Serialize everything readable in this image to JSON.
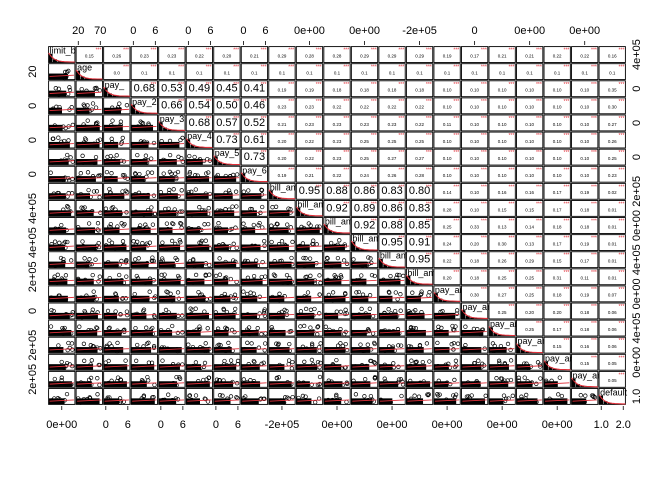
{
  "chart_data": {
    "type": "scatter-matrix",
    "title": "",
    "variables": [
      "limit_bal",
      "age",
      "pay_0",
      "pay_2",
      "pay_3",
      "pay_4",
      "pay_5",
      "pay_6",
      "bill_amt1",
      "bill_amt2",
      "bill_amt3",
      "bill_amt4",
      "bill_amt5",
      "bill_amt6",
      "pay_amt1",
      "pay_amt2",
      "pay_amt3",
      "pay_amt4",
      "pay_amt5",
      "pay_amt6",
      "default"
    ],
    "diagonal_labels": [
      "limit_ba",
      "age",
      "pay_",
      "pay_2",
      "pay_3",
      "pay_4",
      "pay_5",
      "pay_6",
      "bill_am",
      "bill_am",
      "bill_am",
      "bill_am",
      "bill_am",
      "bill_am",
      "pay_am",
      "pay_am",
      "pay_am",
      "pay_am",
      "pay_am",
      "pay_am",
      "default"
    ],
    "top_ticks": [
      {
        "col": 1,
        "labels": [
          "20",
          "70"
        ]
      },
      {
        "col": 3,
        "labels": [
          "0",
          "6"
        ]
      },
      {
        "col": 5,
        "labels": [
          "0",
          "6"
        ]
      },
      {
        "col": 7,
        "labels": [
          "0",
          "6"
        ]
      },
      {
        "col": 9,
        "labels": [
          "0e+00"
        ]
      },
      {
        "col": 11,
        "labels": [
          "0e+00"
        ]
      },
      {
        "col": 13,
        "labels": [
          "-2e+05"
        ]
      },
      {
        "col": 15,
        "labels": [
          "0"
        ]
      },
      {
        "col": 17,
        "labels": [
          "0e+00"
        ]
      },
      {
        "col": 19,
        "labels": [
          "0e+00"
        ]
      }
    ],
    "bottom_ticks": [
      {
        "col": 0,
        "labels": [
          "0e+00"
        ]
      },
      {
        "col": 2,
        "labels": [
          "0",
          "6"
        ]
      },
      {
        "col": 4,
        "labels": [
          "0",
          "6"
        ]
      },
      {
        "col": 6,
        "labels": [
          "0",
          "6"
        ]
      },
      {
        "col": 8,
        "labels": [
          "-2e+05"
        ]
      },
      {
        "col": 10,
        "labels": [
          "0e+00"
        ]
      },
      {
        "col": 12,
        "labels": [
          "0e+00"
        ]
      },
      {
        "col": 14,
        "labels": [
          "0e+00"
        ]
      },
      {
        "col": 16,
        "labels": [
          "0e+00"
        ]
      },
      {
        "col": 18,
        "labels": [
          "0e+00"
        ]
      },
      {
        "col": 20,
        "labels": [
          "1.0",
          "2.0"
        ]
      }
    ],
    "left_ticks": [
      {
        "row": 1,
        "labels": [
          "20"
        ]
      },
      {
        "row": 3,
        "labels": [
          "0"
        ]
      },
      {
        "row": 5,
        "labels": [
          "0"
        ]
      },
      {
        "row": 7,
        "labels": [
          "0"
        ]
      },
      {
        "row": 9,
        "labels": [
          "4e+05"
        ]
      },
      {
        "row": 11,
        "labels": [
          "4e+05"
        ]
      },
      {
        "row": 13,
        "labels": [
          "2e+05"
        ]
      },
      {
        "row": 15,
        "labels": [
          "0"
        ]
      },
      {
        "row": 17,
        "labels": [
          "2e+05"
        ]
      },
      {
        "row": 19,
        "labels": [
          "2e+05"
        ]
      }
    ],
    "right_ticks": [
      {
        "row": 0,
        "labels": [
          "4e+05"
        ]
      },
      {
        "row": 2,
        "labels": [
          "0"
        ]
      },
      {
        "row": 4,
        "labels": [
          "0"
        ]
      },
      {
        "row": 6,
        "labels": [
          "0"
        ]
      },
      {
        "row": 8,
        "labels": [
          "2e+05"
        ]
      },
      {
        "row": 10,
        "labels": [
          "0e+00"
        ]
      },
      {
        "row": 12,
        "labels": [
          "4e+05"
        ]
      },
      {
        "row": 14,
        "labels": [
          "0e+00"
        ]
      },
      {
        "row": 16,
        "labels": [
          "4e+05"
        ]
      },
      {
        "row": 18,
        "labels": [
          "0e+00"
        ]
      },
      {
        "row": 20,
        "labels": [
          "1.0"
        ]
      }
    ],
    "correlations": [
      {
        "row": 0,
        "values": [
          "0.15",
          "0.26",
          "0.23",
          "0.23",
          "0.22",
          "0.20",
          "0.21",
          "0.29",
          "0.28",
          "0.28",
          "0.29",
          "0.29",
          "0.29",
          "0.19",
          "0.17",
          "0.21",
          "0.21",
          "0.22",
          "0.22",
          "0.16"
        ],
        "stars": "***"
      },
      {
        "row": 1,
        "values": [
          "0.0",
          "0.1",
          "0.1",
          "0.1",
          "0.1",
          "0.1",
          "0.1",
          "0.1",
          "0.1",
          "0.1",
          "0.1",
          "0.1",
          "0.1",
          "0.1",
          "0.1",
          "0.1",
          "0.1",
          "0.1",
          "0.1"
        ],
        "stars": "***"
      },
      {
        "row": 2,
        "values": [
          "0.68",
          "0.53",
          "0.49",
          "0.45",
          "0.41",
          "0.19",
          "0.19",
          "0.18",
          "0.18",
          "0.18",
          "0.18",
          "0.10",
          "0.10",
          "0.10",
          "0.10",
          "0.10",
          "0.10",
          "0.35"
        ],
        "stars": "***"
      },
      {
        "row": 3,
        "values": [
          "0.66",
          "0.54",
          "0.50",
          "0.46",
          "0.23",
          "0.23",
          "0.22",
          "0.22",
          "0.22",
          "0.22",
          "0.10",
          "0.10",
          "0.10",
          "0.10",
          "0.10",
          "0.10",
          "0.30"
        ],
        "stars": "***"
      },
      {
        "row": 4,
        "values": [
          "0.68",
          "0.57",
          "0.52",
          "0.21",
          "0.23",
          "0.23",
          "0.23",
          "0.23",
          "0.22",
          "0.11",
          "0.10",
          "0.10",
          "0.10",
          "0.10",
          "0.10",
          "0.27"
        ],
        "stars": "***"
      },
      {
        "row": 5,
        "values": [
          "0.73",
          "0.61",
          "0.20",
          "0.22",
          "0.23",
          "0.25",
          "0.25",
          "0.25",
          "0.10",
          "0.10",
          "0.10",
          "0.10",
          "0.10",
          "0.10",
          "0.26"
        ],
        "stars": "***"
      },
      {
        "row": 6,
        "values": [
          "0.73",
          "0.20",
          "0.22",
          "0.23",
          "0.25",
          "0.27",
          "0.27",
          "0.10",
          "0.10",
          "0.10",
          "0.10",
          "0.10",
          "0.10",
          "0.25"
        ],
        "stars": "***"
      },
      {
        "row": 7,
        "values": [
          "0.19",
          "0.21",
          "0.22",
          "0.24",
          "0.26",
          "0.28",
          "0.10",
          "0.10",
          "0.10",
          "0.10",
          "0.10",
          "0.10",
          "0.23"
        ],
        "stars": "***"
      },
      {
        "row": 8,
        "values": [
          "0.95",
          "0.88",
          "0.86",
          "0.83",
          "0.80",
          "0.14",
          "0.10",
          "0.16",
          "0.16",
          "0.17",
          "0.19",
          "0.02"
        ],
        "stars": "***"
      },
      {
        "row": 9,
        "values": [
          "0.92",
          "0.89",
          "0.86",
          "0.83",
          "0.28",
          "0.10",
          "0.15",
          "0.15",
          "0.17",
          "0.18",
          "0.01"
        ],
        "stars": "***"
      },
      {
        "row": 10,
        "values": [
          "0.92",
          "0.88",
          "0.85",
          "0.25",
          "0.33",
          "0.13",
          "0.14",
          "0.18",
          "0.18",
          "0.01"
        ],
        "stars": "***"
      },
      {
        "row": 11,
        "values": [
          "0.95",
          "0.91",
          "0.24",
          "0.20",
          "0.30",
          "0.13",
          "0.17",
          "0.19",
          "0.01"
        ],
        "stars": "***"
      },
      {
        "row": 12,
        "values": [
          "0.95",
          "0.22",
          "0.18",
          "0.26",
          "0.29",
          "0.15",
          "0.17",
          "0.01"
        ],
        "stars": "***"
      },
      {
        "row": 13,
        "values": [
          "0.20",
          "0.18",
          "0.25",
          "0.25",
          "0.31",
          "0.11",
          "0.01"
        ],
        "stars": "***"
      },
      {
        "row": 14,
        "values": [
          "0.30",
          "0.27",
          "0.25",
          "0.18",
          "0.19",
          "0.07"
        ],
        "stars": "***"
      },
      {
        "row": 15,
        "values": [
          "0.25",
          "0.20",
          "0.20",
          "0.18",
          "0.06"
        ],
        "stars": "***"
      },
      {
        "row": 16,
        "values": [
          "0.25",
          "0.17",
          "0.18",
          "0.06"
        ],
        "stars": "***"
      },
      {
        "row": 17,
        "values": [
          "0.15",
          "0.16",
          "0.06"
        ],
        "stars": "***"
      },
      {
        "row": 18,
        "values": [
          "0.15",
          "0.05"
        ],
        "stars": "***"
      },
      {
        "row": 19,
        "values": [
          "0.05"
        ],
        "stars": "***"
      }
    ],
    "colors": {
      "points": "#000000",
      "smoother": "#e0303a",
      "stars": "#e0303a",
      "panel_border": "#000000",
      "background": "#ffffff"
    }
  }
}
